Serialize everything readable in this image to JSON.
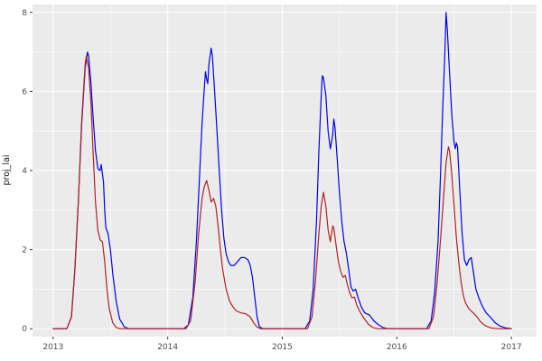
{
  "chart_data": {
    "type": "line",
    "title": "",
    "xlabel": "",
    "ylabel": "proj_lai",
    "xlim": [
      2012.82,
      2017.22
    ],
    "ylim": [
      -0.2,
      8.2
    ],
    "x_ticks": [
      2013,
      2014,
      2015,
      2016,
      2017
    ],
    "y_ticks": [
      0,
      2,
      4,
      6,
      8
    ],
    "x_minor_ticks": [
      2013.5,
      2014.5,
      2015.5,
      2016.5
    ],
    "y_minor_ticks": [
      1,
      3,
      5,
      7
    ],
    "grid": true,
    "legend_position": "none",
    "panel_background": "#EBEBEB",
    "grid_major_color": "#FFFFFF",
    "grid_minor_color": "#FFFFFF",
    "tick_color": "#333333",
    "tick_label_color": "#4D4D4D",
    "series": [
      {
        "name": "blue-series",
        "color": "#0000EE",
        "points": [
          [
            2013.0,
            0
          ],
          [
            2013.12,
            0
          ],
          [
            2013.16,
            0.3
          ],
          [
            2013.19,
            1.5
          ],
          [
            2013.22,
            3.2
          ],
          [
            2013.25,
            5.2
          ],
          [
            2013.28,
            6.6
          ],
          [
            2013.3,
            7.0
          ],
          [
            2013.31,
            6.9
          ],
          [
            2013.33,
            6.2
          ],
          [
            2013.35,
            5.3
          ],
          [
            2013.37,
            4.5
          ],
          [
            2013.39,
            4.05
          ],
          [
            2013.41,
            4.0
          ],
          [
            2013.42,
            4.15
          ],
          [
            2013.44,
            3.7
          ],
          [
            2013.45,
            3.0
          ],
          [
            2013.46,
            2.55
          ],
          [
            2013.48,
            2.4
          ],
          [
            2013.5,
            2.0
          ],
          [
            2013.52,
            1.4
          ],
          [
            2013.55,
            0.7
          ],
          [
            2013.58,
            0.25
          ],
          [
            2013.62,
            0.05
          ],
          [
            2013.66,
            0
          ],
          [
            2014.14,
            0
          ],
          [
            2014.18,
            0.1
          ],
          [
            2014.22,
            0.8
          ],
          [
            2014.25,
            2.2
          ],
          [
            2014.28,
            4.0
          ],
          [
            2014.3,
            5.2
          ],
          [
            2014.32,
            6.1
          ],
          [
            2014.33,
            6.5
          ],
          [
            2014.34,
            6.3
          ],
          [
            2014.35,
            6.2
          ],
          [
            2014.36,
            6.7
          ],
          [
            2014.38,
            7.1
          ],
          [
            2014.39,
            6.9
          ],
          [
            2014.41,
            6.0
          ],
          [
            2014.43,
            5.0
          ],
          [
            2014.45,
            4.0
          ],
          [
            2014.47,
            3.0
          ],
          [
            2014.49,
            2.3
          ],
          [
            2014.51,
            1.9
          ],
          [
            2014.53,
            1.7
          ],
          [
            2014.55,
            1.6
          ],
          [
            2014.58,
            1.6
          ],
          [
            2014.61,
            1.7
          ],
          [
            2014.64,
            1.8
          ],
          [
            2014.67,
            1.8
          ],
          [
            2014.7,
            1.75
          ],
          [
            2014.72,
            1.6
          ],
          [
            2014.74,
            1.3
          ],
          [
            2014.76,
            0.8
          ],
          [
            2014.78,
            0.3
          ],
          [
            2014.8,
            0.05
          ],
          [
            2014.83,
            0
          ],
          [
            2015.2,
            0
          ],
          [
            2015.24,
            0.2
          ],
          [
            2015.27,
            1.0
          ],
          [
            2015.3,
            2.8
          ],
          [
            2015.32,
            4.5
          ],
          [
            2015.34,
            5.9
          ],
          [
            2015.35,
            6.4
          ],
          [
            2015.36,
            6.35
          ],
          [
            2015.38,
            5.9
          ],
          [
            2015.4,
            5.0
          ],
          [
            2015.42,
            4.55
          ],
          [
            2015.44,
            4.9
          ],
          [
            2015.45,
            5.3
          ],
          [
            2015.46,
            5.1
          ],
          [
            2015.48,
            4.3
          ],
          [
            2015.5,
            3.4
          ],
          [
            2015.52,
            2.7
          ],
          [
            2015.54,
            2.2
          ],
          [
            2015.56,
            1.9
          ],
          [
            2015.58,
            1.5
          ],
          [
            2015.6,
            1.05
          ],
          [
            2015.62,
            0.95
          ],
          [
            2015.64,
            1.0
          ],
          [
            2015.66,
            0.8
          ],
          [
            2015.69,
            0.55
          ],
          [
            2015.72,
            0.4
          ],
          [
            2015.76,
            0.35
          ],
          [
            2015.8,
            0.2
          ],
          [
            2015.84,
            0.1
          ],
          [
            2015.88,
            0.03
          ],
          [
            2015.92,
            0
          ],
          [
            2016.26,
            0
          ],
          [
            2016.3,
            0.2
          ],
          [
            2016.33,
            0.9
          ],
          [
            2016.36,
            2.2
          ],
          [
            2016.38,
            3.8
          ],
          [
            2016.4,
            5.5
          ],
          [
            2016.42,
            7.0
          ],
          [
            2016.43,
            8.0
          ],
          [
            2016.44,
            7.6
          ],
          [
            2016.46,
            6.5
          ],
          [
            2016.48,
            5.4
          ],
          [
            2016.5,
            4.7
          ],
          [
            2016.51,
            4.55
          ],
          [
            2016.52,
            4.7
          ],
          [
            2016.53,
            4.6
          ],
          [
            2016.55,
            3.5
          ],
          [
            2016.57,
            2.4
          ],
          [
            2016.59,
            1.75
          ],
          [
            2016.61,
            1.6
          ],
          [
            2016.63,
            1.75
          ],
          [
            2016.65,
            1.8
          ],
          [
            2016.67,
            1.4
          ],
          [
            2016.69,
            1.0
          ],
          [
            2016.72,
            0.75
          ],
          [
            2016.75,
            0.55
          ],
          [
            2016.78,
            0.4
          ],
          [
            2016.82,
            0.28
          ],
          [
            2016.86,
            0.15
          ],
          [
            2016.9,
            0.07
          ],
          [
            2016.95,
            0.02
          ],
          [
            2017.0,
            0
          ]
        ]
      },
      {
        "name": "red-series",
        "color": "#B22222",
        "points": [
          [
            2013.0,
            0
          ],
          [
            2013.12,
            0
          ],
          [
            2013.16,
            0.3
          ],
          [
            2013.19,
            1.5
          ],
          [
            2013.22,
            3.2
          ],
          [
            2013.25,
            5.3
          ],
          [
            2013.28,
            6.7
          ],
          [
            2013.29,
            6.9
          ],
          [
            2013.31,
            6.6
          ],
          [
            2013.33,
            5.7
          ],
          [
            2013.35,
            4.4
          ],
          [
            2013.37,
            3.2
          ],
          [
            2013.39,
            2.5
          ],
          [
            2013.41,
            2.25
          ],
          [
            2013.43,
            2.2
          ],
          [
            2013.45,
            1.7
          ],
          [
            2013.47,
            1.0
          ],
          [
            2013.49,
            0.5
          ],
          [
            2013.52,
            0.15
          ],
          [
            2013.55,
            0.03
          ],
          [
            2013.58,
            0
          ],
          [
            2014.16,
            0
          ],
          [
            2014.2,
            0.2
          ],
          [
            2014.24,
            1.2
          ],
          [
            2014.27,
            2.4
          ],
          [
            2014.3,
            3.3
          ],
          [
            2014.32,
            3.6
          ],
          [
            2014.34,
            3.75
          ],
          [
            2014.36,
            3.5
          ],
          [
            2014.38,
            3.2
          ],
          [
            2014.4,
            3.3
          ],
          [
            2014.42,
            3.1
          ],
          [
            2014.44,
            2.6
          ],
          [
            2014.46,
            2.0
          ],
          [
            2014.48,
            1.5
          ],
          [
            2014.51,
            1.0
          ],
          [
            2014.54,
            0.7
          ],
          [
            2014.57,
            0.55
          ],
          [
            2014.6,
            0.45
          ],
          [
            2014.64,
            0.4
          ],
          [
            2014.68,
            0.38
          ],
          [
            2014.72,
            0.3
          ],
          [
            2014.75,
            0.15
          ],
          [
            2014.78,
            0.04
          ],
          [
            2014.81,
            0
          ],
          [
            2015.22,
            0
          ],
          [
            2015.26,
            0.3
          ],
          [
            2015.29,
            1.2
          ],
          [
            2015.32,
            2.4
          ],
          [
            2015.34,
            3.1
          ],
          [
            2015.36,
            3.45
          ],
          [
            2015.38,
            3.1
          ],
          [
            2015.4,
            2.5
          ],
          [
            2015.42,
            2.2
          ],
          [
            2015.44,
            2.6
          ],
          [
            2015.45,
            2.55
          ],
          [
            2015.47,
            2.1
          ],
          [
            2015.49,
            1.7
          ],
          [
            2015.51,
            1.45
          ],
          [
            2015.53,
            1.3
          ],
          [
            2015.55,
            1.35
          ],
          [
            2015.57,
            1.1
          ],
          [
            2015.59,
            0.9
          ],
          [
            2015.61,
            0.78
          ],
          [
            2015.63,
            0.8
          ],
          [
            2015.65,
            0.6
          ],
          [
            2015.68,
            0.42
          ],
          [
            2015.71,
            0.28
          ],
          [
            2015.75,
            0.12
          ],
          [
            2015.79,
            0.03
          ],
          [
            2015.83,
            0
          ],
          [
            2016.28,
            0
          ],
          [
            2016.32,
            0.3
          ],
          [
            2016.35,
            1.1
          ],
          [
            2016.38,
            2.2
          ],
          [
            2016.41,
            3.4
          ],
          [
            2016.43,
            4.2
          ],
          [
            2016.45,
            4.6
          ],
          [
            2016.46,
            4.5
          ],
          [
            2016.48,
            3.9
          ],
          [
            2016.5,
            3.1
          ],
          [
            2016.52,
            2.3
          ],
          [
            2016.54,
            1.7
          ],
          [
            2016.56,
            1.2
          ],
          [
            2016.58,
            0.85
          ],
          [
            2016.6,
            0.65
          ],
          [
            2016.63,
            0.5
          ],
          [
            2016.66,
            0.42
          ],
          [
            2016.7,
            0.3
          ],
          [
            2016.73,
            0.18
          ],
          [
            2016.77,
            0.08
          ],
          [
            2016.82,
            0.02
          ],
          [
            2016.88,
            0
          ],
          [
            2017.0,
            0
          ]
        ]
      }
    ]
  }
}
